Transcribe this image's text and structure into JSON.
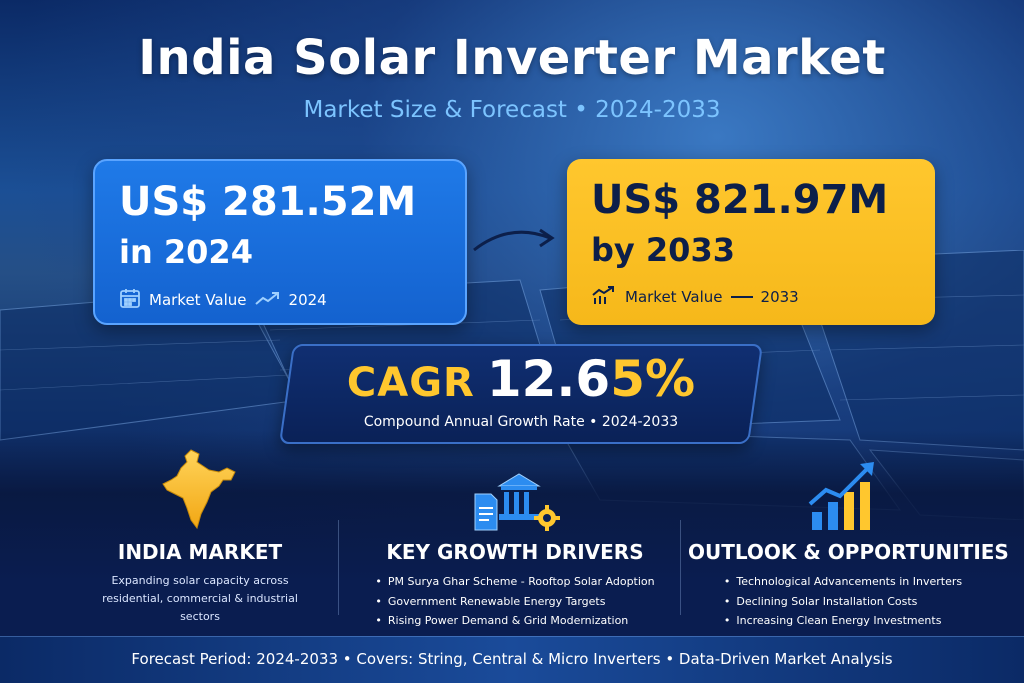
{
  "title": "India Solar Inverter Market",
  "subtitle": "Market Size & Forecast • 2024-2033",
  "card_2024": {
    "value": "US$ 281.52M",
    "period": "in 2024",
    "meta_label": "Market Value",
    "meta_year": "2024"
  },
  "card_2033": {
    "value": "US$ 821.97M",
    "period": "by 2033",
    "meta_label": "Market Value",
    "meta_year": "2033"
  },
  "cagr": {
    "label": "CAGR",
    "value_number": "12.6",
    "value_tail": "5%",
    "subtitle": "Compound Annual Growth Rate • 2024-2033"
  },
  "sections": {
    "india": {
      "title": "INDIA MARKET",
      "body": "Expanding solar capacity across residential, commercial & industrial sectors"
    },
    "drivers": {
      "title": "KEY GROWTH DRIVERS",
      "items": [
        "PM Surya Ghar Scheme - Rooftop Solar Adoption",
        "Government Renewable Energy Targets",
        "Rising Power Demand & Grid Modernization"
      ]
    },
    "outlook": {
      "title": "OUTLOOK & OPPORTUNITIES",
      "items": [
        "Technological Advancements in Inverters",
        "Declining Solar Installation Costs",
        "Increasing Clean Energy Investments"
      ]
    }
  },
  "footer": "Forecast Period: 2024-2033  •  Covers: String, Central & Micro Inverters  •  Data-Driven Market Analysis",
  "colors": {
    "accent_blue": "#1f7ae8",
    "accent_yellow": "#ffc72e",
    "navy": "#0a1f4a",
    "subtitle_blue": "#7cc4ff"
  },
  "icons": [
    "calendar-icon",
    "trend-up-icon",
    "chart-growth-icon",
    "arrow-right-icon",
    "india-map-icon",
    "government-building-icon",
    "document-icon",
    "gear-icon",
    "bar-chart-icon"
  ]
}
